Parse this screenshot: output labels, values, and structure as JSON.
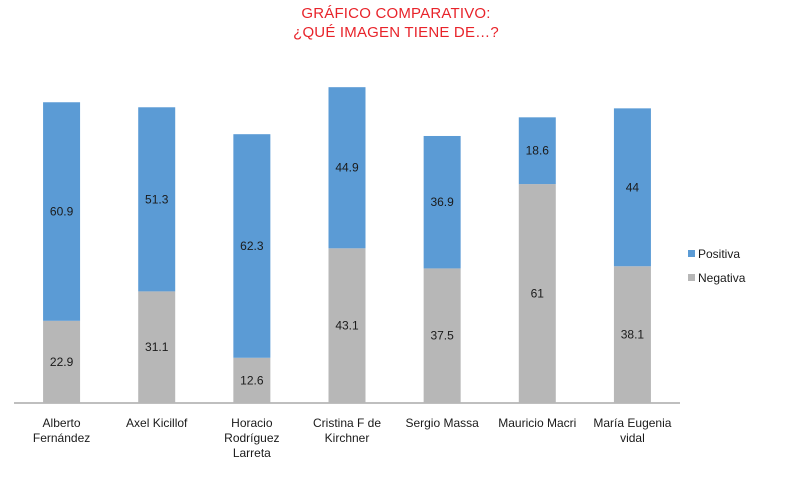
{
  "chart_data": {
    "type": "bar",
    "stacked": true,
    "title_lines": [
      "GRÁFICO COMPARATIVO:",
      "¿QUÉ IMAGEN TIENE DE…?"
    ],
    "categories": [
      [
        "Alberto",
        "Fernández"
      ],
      [
        "Axel Kicillof"
      ],
      [
        "Horacio",
        "Rodríguez",
        "Larreta"
      ],
      [
        "Cristina F de",
        "Kirchner"
      ],
      [
        "Sergio Massa"
      ],
      [
        "Mauricio Macri"
      ],
      [
        "María Eugenia",
        "vidal"
      ]
    ],
    "series": [
      {
        "name": "Negativa",
        "color": "#b7b7b7",
        "values": [
          22.9,
          31.1,
          12.6,
          43.1,
          37.5,
          61,
          38.1
        ],
        "labels": [
          "22.9",
          "31.1",
          "12.6",
          "43.1",
          "37.5",
          "61",
          "38.1"
        ]
      },
      {
        "name": "Positiva",
        "color": "#5b9bd5",
        "values": [
          60.9,
          51.3,
          62.3,
          44.9,
          36.9,
          18.6,
          44
        ],
        "labels": [
          "60.9",
          "51.3",
          "62.3",
          "44.9",
          "36.9",
          "18.6",
          "44"
        ]
      }
    ],
    "legend": {
      "position": "right",
      "order": [
        "Positiva",
        "Negativa"
      ]
    },
    "ylim": [
      0,
      90
    ],
    "grid": false
  }
}
